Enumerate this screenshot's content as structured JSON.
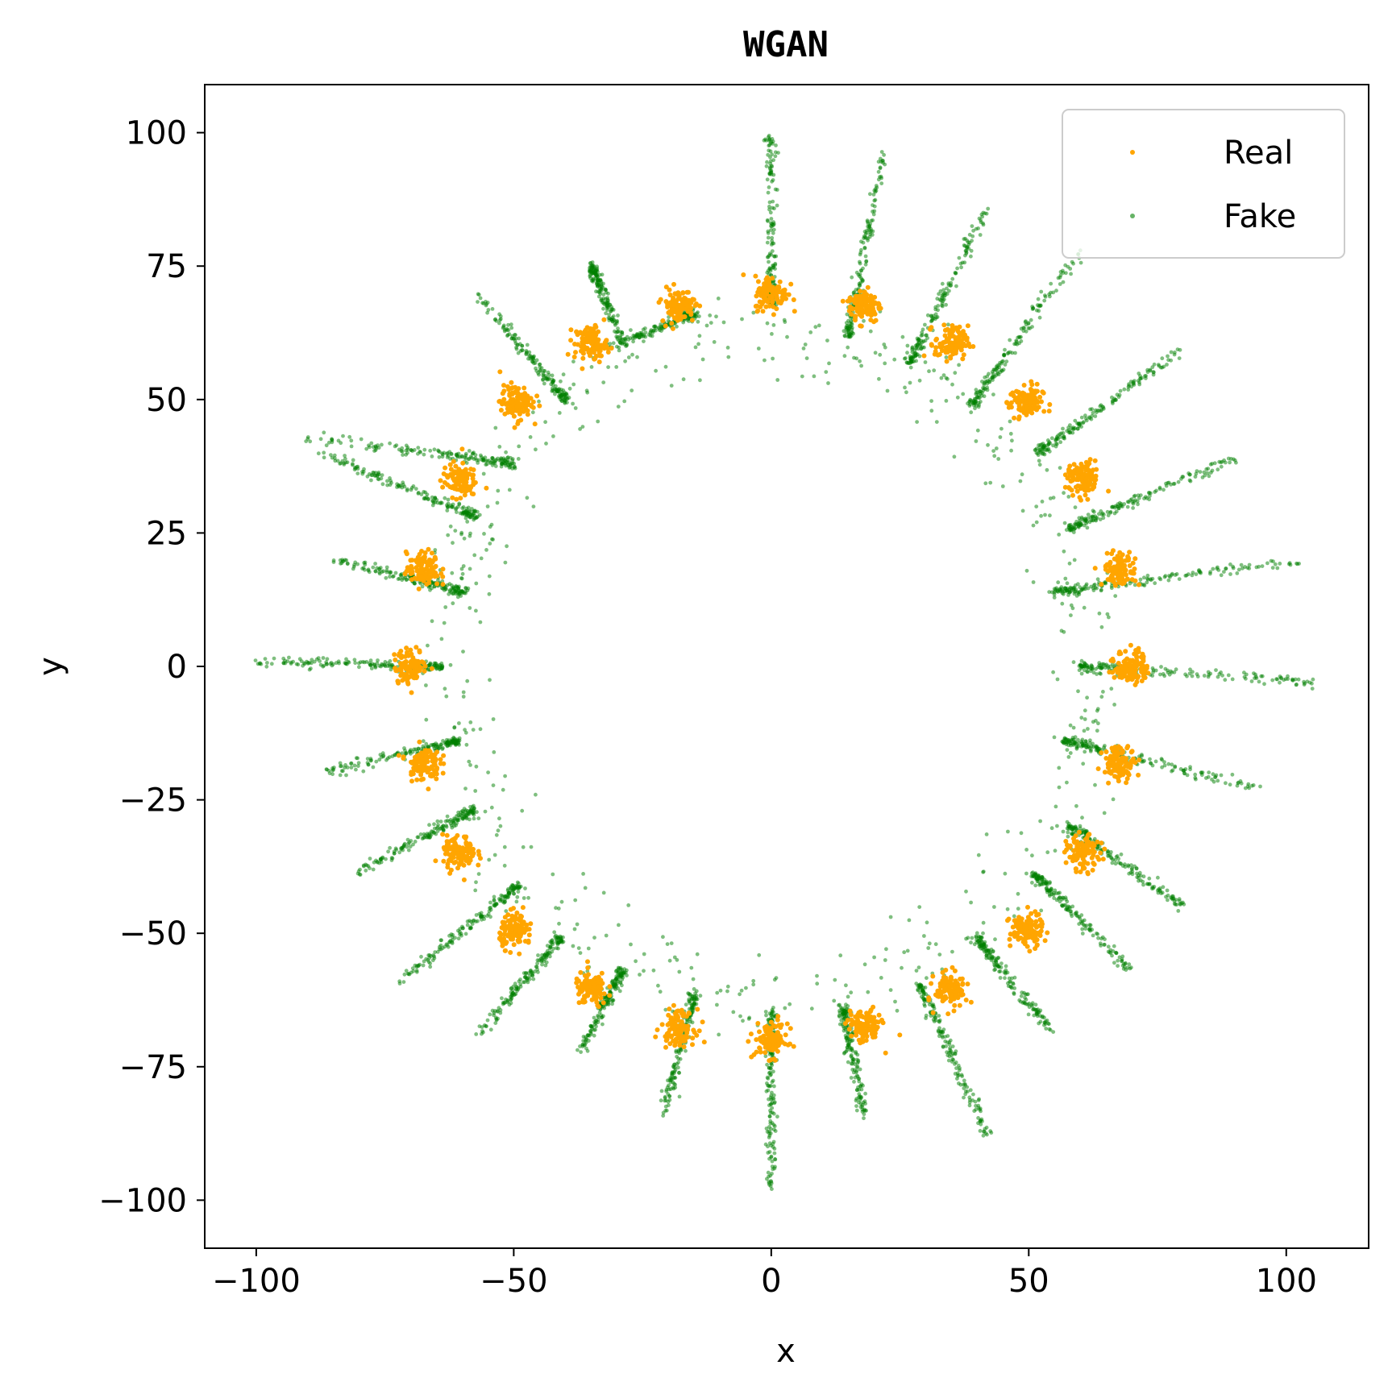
{
  "chart_data": {
    "type": "scatter",
    "title": "WGAN",
    "xlabel": "x",
    "ylabel": "y",
    "xlim": [
      -110,
      116
    ],
    "ylim": [
      -109,
      109
    ],
    "x_ticks": [
      -100,
      -50,
      0,
      50,
      100
    ],
    "y_ticks": [
      -100,
      -75,
      -50,
      -25,
      0,
      25,
      50,
      75,
      100
    ],
    "x_tick_labels": [
      "−100",
      "−50",
      "0",
      "50",
      "100"
    ],
    "y_tick_labels": [
      "−100",
      "−75",
      "−50",
      "−25",
      "0",
      "25",
      "50",
      "75",
      "100"
    ],
    "grid": false,
    "legend_position": "top-right",
    "real_mode_radius": 70,
    "real_mode_count": 24,
    "series": [
      {
        "name": "Real",
        "color": "#FFA500",
        "description_points": "24 gaussian clusters evenly spaced on a circle of radius 70",
        "centers": [
          [
            70,
            0
          ],
          [
            67.6,
            18.1
          ],
          [
            60.6,
            35
          ],
          [
            49.5,
            49.5
          ],
          [
            35,
            60.6
          ],
          [
            18.1,
            67.6
          ],
          [
            0,
            70
          ],
          [
            -18.1,
            67.6
          ],
          [
            -35,
            60.6
          ],
          [
            -49.5,
            49.5
          ],
          [
            -60.6,
            35
          ],
          [
            -67.6,
            18.1
          ],
          [
            -70,
            0
          ],
          [
            -67.6,
            -18.1
          ],
          [
            -60.6,
            -35
          ],
          [
            -49.5,
            -49.5
          ],
          [
            -35,
            -60.6
          ],
          [
            -18.1,
            -67.6
          ],
          [
            0,
            -70
          ],
          [
            18.1,
            -67.6
          ],
          [
            35,
            -60.6
          ],
          [
            49.5,
            -49.5
          ],
          [
            60.6,
            -35
          ],
          [
            67.6,
            -18.1
          ]
        ],
        "spread": 1.6
      },
      {
        "name": "Fake",
        "color": "#008000",
        "opacity": 0.5,
        "segments": [
          [
            [
              0,
              -65
            ],
            [
              0,
              -98
            ]
          ],
          [
            [
              14,
              -64
            ],
            [
              18,
              -84
            ]
          ],
          [
            [
              29,
              -60
            ],
            [
              42,
              -88
            ]
          ],
          [
            [
              40,
              -51
            ],
            [
              54,
              -68
            ]
          ],
          [
            [
              51,
              -39
            ],
            [
              70,
              -57
            ]
          ],
          [
            [
              58,
              -30
            ],
            [
              80,
              -45
            ]
          ],
          [
            [
              57,
              -14
            ],
            [
              95,
              -23
            ]
          ],
          [
            [
              60,
              0
            ],
            [
              106,
              -3
            ]
          ],
          [
            [
              55,
              14
            ],
            [
              103,
              20
            ]
          ],
          [
            [
              58,
              26
            ],
            [
              90,
              39
            ]
          ],
          [
            [
              52,
              40
            ],
            [
              79,
              59
            ]
          ],
          [
            [
              39,
              49
            ],
            [
              60,
              78
            ]
          ],
          [
            [
              27,
              57
            ],
            [
              42,
              86
            ]
          ],
          [
            [
              15,
              62
            ],
            [
              22,
              98
            ]
          ],
          [
            [
              0,
              68
            ],
            [
              0,
              100
            ]
          ],
          [
            [
              -15,
              66
            ],
            [
              -31,
              60
            ]
          ],
          [
            [
              -35,
              75
            ],
            [
              -29,
              61
            ]
          ],
          [
            [
              -40,
              50
            ],
            [
              -57,
              70
            ]
          ],
          [
            [
              -50,
              38
            ],
            [
              -90,
              43
            ]
          ],
          [
            [
              -57,
              28
            ],
            [
              -88,
              40
            ]
          ],
          [
            [
              -60,
              14
            ],
            [
              -85,
              20
            ]
          ],
          [
            [
              -64,
              0
            ],
            [
              -100,
              1
            ]
          ],
          [
            [
              -61,
              -14
            ],
            [
              -87,
              -20
            ]
          ],
          [
            [
              -58,
              -27
            ],
            [
              -81,
              -39
            ]
          ],
          [
            [
              -49,
              -41
            ],
            [
              -72,
              -59
            ]
          ],
          [
            [
              -41,
              -51
            ],
            [
              -57,
              -69
            ]
          ],
          [
            [
              -29,
              -57
            ],
            [
              -37,
              -72
            ]
          ],
          [
            [
              -15,
              -62
            ],
            [
              -21,
              -84
            ]
          ]
        ]
      }
    ]
  }
}
